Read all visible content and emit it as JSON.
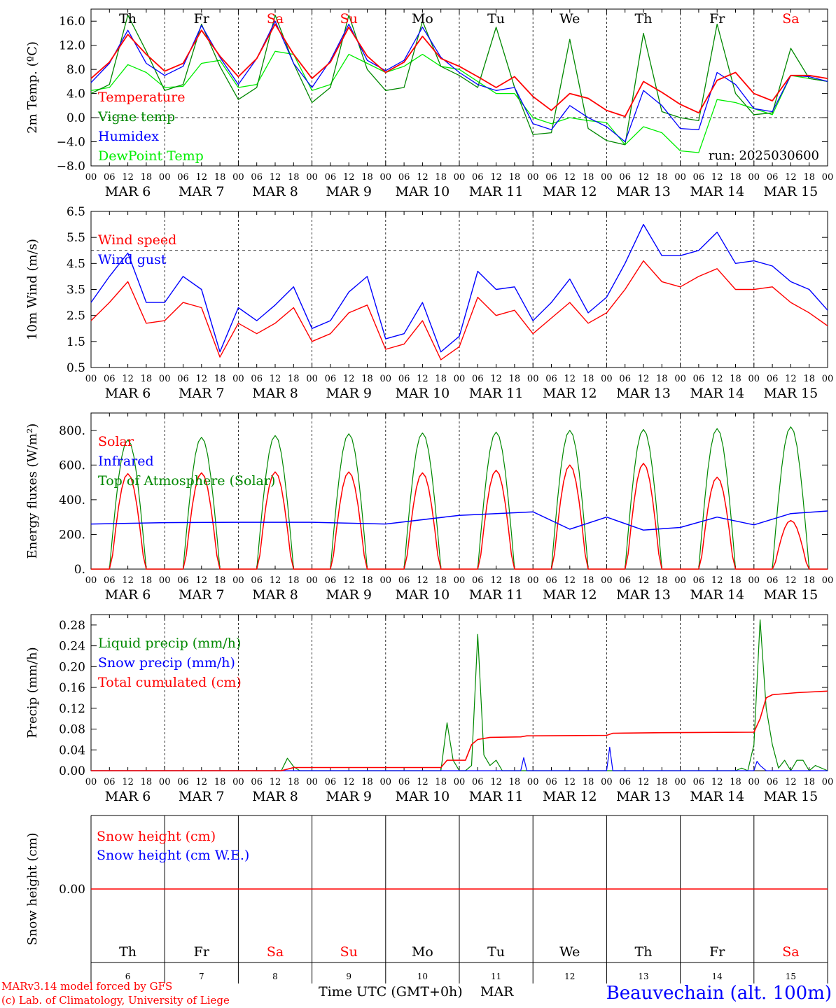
{
  "run_label": "run: 2025030600",
  "footer": {
    "model": "MARv3.14 model forced by GFS",
    "copyright": "(c) Lab. of Climatology, University of Liege",
    "xlabel": "Time UTC (GMT+0h)",
    "month": "MAR",
    "station": "Beauvechain (alt. 100m)"
  },
  "days": [
    {
      "dow": "Th",
      "num": "6",
      "date": "MAR  6",
      "weekend": false
    },
    {
      "dow": "Fr",
      "num": "7",
      "date": "MAR  7",
      "weekend": false
    },
    {
      "dow": "Sa",
      "num": "8",
      "date": "MAR  8",
      "weekend": true
    },
    {
      "dow": "Su",
      "num": "9",
      "date": "MAR  9",
      "weekend": true
    },
    {
      "dow": "Mo",
      "num": "10",
      "date": "MAR 10",
      "weekend": false
    },
    {
      "dow": "Tu",
      "num": "11",
      "date": "MAR 11",
      "weekend": false
    },
    {
      "dow": "We",
      "num": "12",
      "date": "MAR 12",
      "weekend": false
    },
    {
      "dow": "Th",
      "num": "13",
      "date": "MAR 13",
      "weekend": false
    },
    {
      "dow": "Fr",
      "num": "14",
      "date": "MAR 14",
      "weekend": false
    },
    {
      "dow": "Sa",
      "num": "15",
      "date": "MAR 15",
      "weekend": true
    }
  ],
  "hour_ticks": [
    "00",
    "06",
    "12",
    "18"
  ],
  "colors": {
    "red": "#ff0000",
    "green": "#008800",
    "blue": "#0000ff",
    "lightgreen": "#00ee00",
    "weekend": "#ff0000"
  },
  "chart_data": [
    {
      "type": "line",
      "ylabel": "2m Temp. (ºC)",
      "ylim": [
        -8,
        18
      ],
      "yticks": [
        "−8.0",
        "−4.0",
        "0.0",
        "4.0",
        "8.0",
        "12.0",
        "16.0"
      ],
      "ytick_values": [
        -8,
        -4,
        0,
        4,
        8,
        12,
        16
      ],
      "x": [
        0,
        6,
        12,
        18,
        24,
        30,
        36,
        42,
        48,
        54,
        60,
        66,
        72,
        78,
        84,
        90,
        96,
        102,
        108,
        114,
        120,
        126,
        132,
        138,
        144,
        150,
        156,
        162,
        168,
        174,
        180,
        186,
        192,
        198,
        204,
        210,
        216,
        222,
        228,
        234,
        240
      ],
      "x_unit": "hours since MAR 6 00 UTC",
      "legend_position": "bottom-left",
      "series": [
        {
          "name": "Temperature",
          "color": "red",
          "values": [
            6.5,
            9.2,
            13.8,
            10.5,
            7.7,
            9.0,
            14.5,
            10.2,
            6.8,
            9.8,
            15.5,
            10.5,
            6.5,
            9.2,
            15.0,
            10.2,
            7.5,
            9.2,
            13.5,
            9.8,
            8.5,
            6.8,
            5.0,
            6.8,
            3.5,
            1.2,
            4.0,
            3.2,
            1.2,
            0.2,
            6.0,
            4.2,
            2.2,
            0.8,
            6.2,
            7.5,
            4.0,
            2.8,
            7.0,
            7.0,
            6.5
          ]
        },
        {
          "name": "Vigne temp",
          "color": "green",
          "values": [
            4.0,
            5.5,
            17.0,
            11.0,
            4.5,
            5.5,
            15.5,
            8.5,
            3.0,
            5.0,
            17.0,
            9.0,
            2.5,
            5.0,
            17.0,
            8.0,
            4.5,
            5.0,
            16.0,
            8.5,
            7.0,
            5.0,
            15.0,
            5.0,
            -2.8,
            -2.5,
            13.0,
            -1.8,
            -3.8,
            -4.5,
            14.0,
            1.0,
            0.0,
            -0.5,
            15.5,
            4.0,
            0.5,
            0.8,
            11.5,
            6.5,
            6.0
          ]
        },
        {
          "name": "Humidex",
          "color": "blue",
          "values": [
            5.8,
            9.0,
            14.5,
            9.0,
            7.0,
            8.5,
            15.3,
            10.0,
            5.5,
            9.8,
            16.0,
            9.0,
            5.0,
            9.5,
            15.5,
            9.5,
            7.8,
            9.5,
            15.0,
            10.0,
            7.5,
            5.5,
            4.5,
            5.0,
            -1.0,
            -2.0,
            2.0,
            0.0,
            -1.5,
            -4.0,
            4.5,
            2.0,
            -1.8,
            -2.0,
            7.5,
            5.5,
            1.5,
            1.0,
            7.0,
            6.8,
            6.0
          ]
        },
        {
          "name": "DewPoint Temp",
          "color": "lightgreen",
          "values": [
            4.5,
            5.0,
            8.8,
            7.5,
            5.0,
            5.2,
            9.0,
            9.5,
            5.0,
            5.5,
            11.0,
            10.5,
            4.5,
            5.5,
            10.5,
            9.0,
            7.5,
            8.5,
            10.5,
            8.5,
            8.0,
            6.0,
            4.0,
            4.0,
            0.0,
            -1.0,
            0.0,
            -0.5,
            -0.8,
            -4.5,
            -1.5,
            -2.5,
            -5.5,
            -5.8,
            3.0,
            2.5,
            1.5,
            0.5,
            7.0,
            6.5,
            6.0
          ]
        }
      ],
      "hline": {
        "value": 0,
        "style": "dashed"
      }
    },
    {
      "type": "line",
      "ylabel": "10m Wind (m/s)",
      "ylim": [
        0.5,
        6.5
      ],
      "yticks": [
        "0.5",
        "1.5",
        "2.5",
        "3.5",
        "4.5",
        "5.5",
        "6.5"
      ],
      "ytick_values": [
        0.5,
        1.5,
        2.5,
        3.5,
        4.5,
        5.5,
        6.5
      ],
      "x": [
        0,
        6,
        12,
        18,
        24,
        30,
        36,
        42,
        48,
        54,
        60,
        66,
        72,
        78,
        84,
        90,
        96,
        102,
        108,
        114,
        120,
        126,
        132,
        138,
        144,
        150,
        156,
        162,
        168,
        174,
        180,
        186,
        192,
        198,
        204,
        210,
        216,
        222,
        228,
        234,
        240
      ],
      "legend_position": "top-left",
      "series": [
        {
          "name": "Wind speed",
          "color": "red",
          "values": [
            2.3,
            3.0,
            3.8,
            2.2,
            2.3,
            3.0,
            2.8,
            0.9,
            2.2,
            1.8,
            2.2,
            2.8,
            1.5,
            1.8,
            2.6,
            2.9,
            1.2,
            1.4,
            2.3,
            0.8,
            1.3,
            3.2,
            2.5,
            2.7,
            1.8,
            2.4,
            3.0,
            2.2,
            2.6,
            3.5,
            4.6,
            3.8,
            3.6,
            4.0,
            4.3,
            3.5,
            3.5,
            3.6,
            3.0,
            2.6,
            2.1
          ]
        },
        {
          "name": "Wind gust",
          "color": "blue",
          "values": [
            3.0,
            4.0,
            4.9,
            3.0,
            3.0,
            4.0,
            3.5,
            1.1,
            2.8,
            2.3,
            2.9,
            3.6,
            2.0,
            2.3,
            3.4,
            4.0,
            1.6,
            1.8,
            3.0,
            1.1,
            1.7,
            4.2,
            3.5,
            3.6,
            2.3,
            3.0,
            3.9,
            2.6,
            3.2,
            4.5,
            6.0,
            4.8,
            4.8,
            5.0,
            5.7,
            4.5,
            4.6,
            4.4,
            3.8,
            3.5,
            2.7
          ]
        }
      ],
      "hline": {
        "value": 5.0,
        "style": "dashed"
      }
    },
    {
      "type": "line",
      "ylabel": "Energy fluxes (W/m²)",
      "ylim": [
        0,
        900
      ],
      "yticks": [
        "0.",
        "200.",
        "400.",
        "600.",
        "800."
      ],
      "ytick_values": [
        0,
        200,
        400,
        600,
        800
      ],
      "legend_position": "top-left",
      "series": [
        {
          "name": "Solar",
          "color": "red",
          "peaks": [
            550,
            555,
            560,
            560,
            555,
            570,
            600,
            610,
            530,
            280
          ]
        },
        {
          "name": "Infrared",
          "color": "blue",
          "x": [
            0,
            24,
            48,
            72,
            96,
            120,
            144,
            156,
            168,
            180,
            192,
            204,
            216,
            228,
            240
          ],
          "values": [
            260,
            268,
            270,
            270,
            260,
            310,
            330,
            230,
            300,
            225,
            240,
            300,
            255,
            320,
            335
          ]
        },
        {
          "name": "Top of Atmosphere (Solar)",
          "color": "green",
          "peaks": [
            745,
            760,
            770,
            780,
            785,
            790,
            800,
            805,
            810,
            820
          ]
        }
      ]
    },
    {
      "type": "line",
      "ylabel": "Precip (mm/h)",
      "ylim": [
        0,
        0.3
      ],
      "yticks": [
        "0.00",
        "0.04",
        "0.08",
        "0.12",
        "0.16",
        "0.20",
        "0.24",
        "0.28"
      ],
      "ytick_values": [
        0,
        0.04,
        0.08,
        0.12,
        0.16,
        0.2,
        0.24,
        0.28
      ],
      "legend_position": "top-left",
      "series": [
        {
          "name": "Liquid precip (mm/h)",
          "color": "green",
          "x": [
            0,
            62,
            64,
            66,
            68,
            70,
            114,
            116,
            118,
            120,
            122,
            124,
            126,
            128,
            130,
            132,
            134,
            208,
            210,
            212,
            214,
            216,
            218,
            220,
            222,
            224,
            226,
            228,
            230,
            232,
            234,
            236,
            240
          ],
          "values": [
            0,
            0,
            0.024,
            0.008,
            0,
            0,
            0,
            0.092,
            0.02,
            0,
            0,
            0.01,
            0.262,
            0.03,
            0.01,
            0.02,
            0,
            0,
            0,
            0.005,
            0,
            0.05,
            0.29,
            0.12,
            0.05,
            0.005,
            0.02,
            0,
            0.02,
            0.02,
            0,
            0.01,
            0
          ]
        },
        {
          "name": "Snow precip (mm/h)",
          "color": "blue",
          "x": [
            0,
            140,
            141,
            142,
            168,
            169,
            170,
            216,
            217,
            218,
            220,
            240
          ],
          "values": [
            0,
            0,
            0.025,
            0,
            0,
            0.045,
            0,
            0,
            0.018,
            0.01,
            0,
            0
          ]
        },
        {
          "name": "Total cumulated (cm)",
          "color": "red",
          "x": [
            0,
            62,
            64,
            66,
            114,
            116,
            120,
            122,
            124,
            126,
            130,
            140,
            142,
            168,
            170,
            186,
            216,
            218,
            220,
            222,
            230,
            240
          ],
          "values": [
            0,
            0,
            0.003,
            0.006,
            0.006,
            0.02,
            0.02,
            0.02,
            0.05,
            0.06,
            0.064,
            0.065,
            0.067,
            0.068,
            0.072,
            0.073,
            0.074,
            0.1,
            0.14,
            0.146,
            0.15,
            0.153
          ]
        }
      ]
    },
    {
      "type": "line",
      "ylabel": "Snow height (cm)",
      "yticks": [
        "0.00"
      ],
      "ytick_values": [
        0
      ],
      "legend_position": "top-left",
      "series": [
        {
          "name": "Snow height (cm)",
          "color": "red",
          "x": [
            0,
            240
          ],
          "values": [
            0,
            0
          ]
        },
        {
          "name": "Snow height (cm W.E.)",
          "color": "blue",
          "x": [
            0,
            240
          ],
          "values": [
            0,
            0
          ]
        }
      ]
    }
  ]
}
